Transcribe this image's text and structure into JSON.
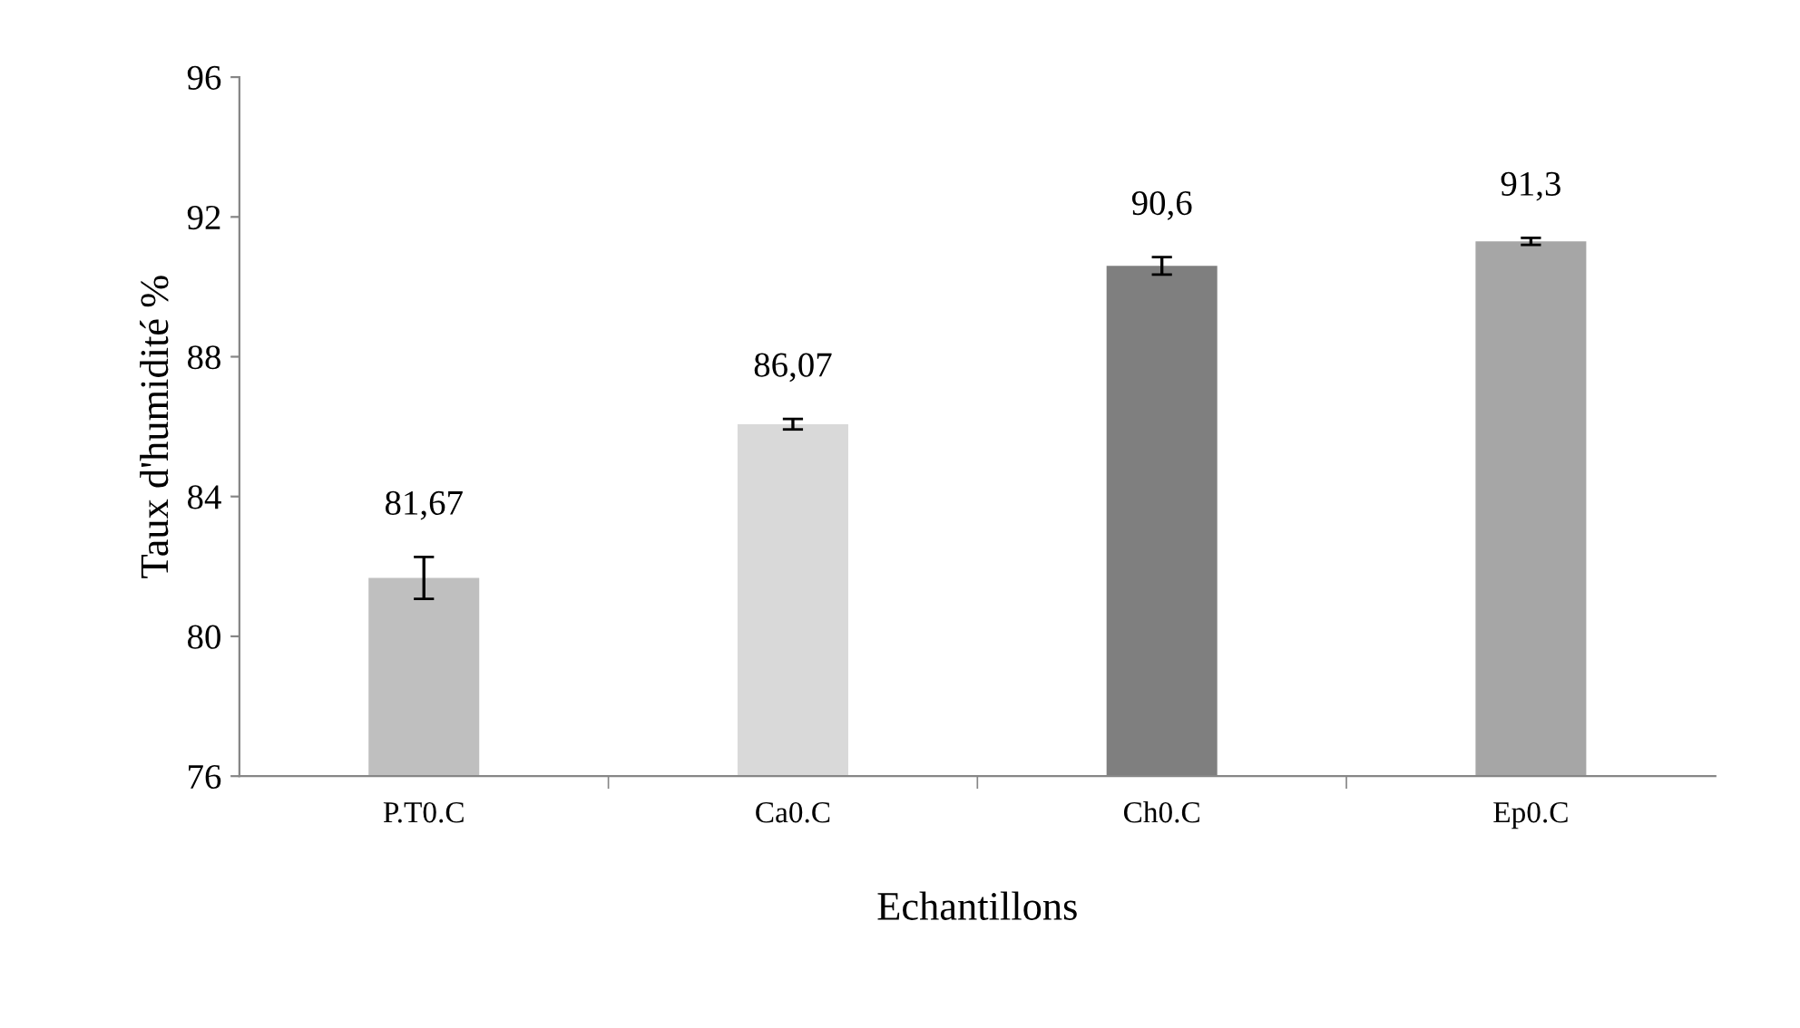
{
  "chart_data": {
    "type": "bar",
    "xlabel": "Echantillons",
    "ylabel": "Taux d'humidité %",
    "categories": [
      "P.T0.C",
      "Ca0.C",
      "Ch0.C",
      "Ep0.C"
    ],
    "values": [
      81.67,
      86.07,
      90.6,
      91.3
    ],
    "colors": [
      "#bfbfbf",
      "#d9d9d9",
      "#7f7f7f",
      "#a6a6a6"
    ],
    "errors": [
      0.6,
      0.15,
      0.25,
      0.1
    ],
    "value_labels": [
      "81,67",
      "86,07",
      "90,6",
      "91,3"
    ],
    "ylim": [
      76,
      96
    ],
    "yticks": [
      76,
      80,
      84,
      88,
      92,
      96
    ],
    "grid": false,
    "legend": false
  }
}
